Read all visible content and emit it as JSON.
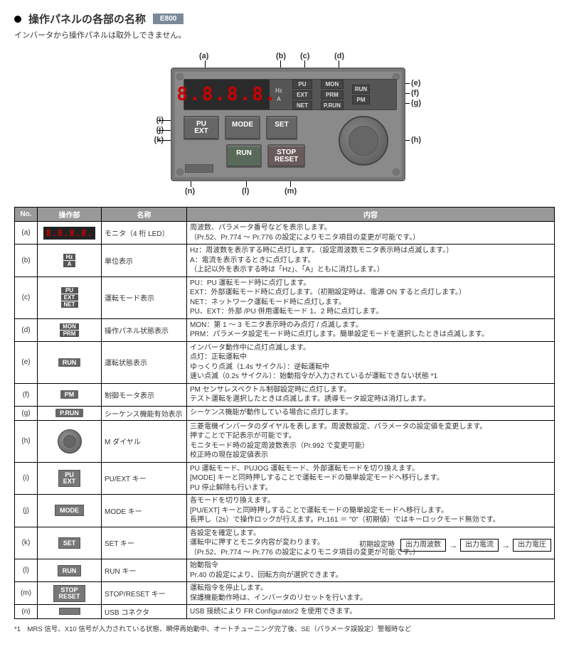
{
  "header": {
    "title": "操作パネルの各部の名称",
    "badge": "E800",
    "subtitle": "インバータから操作パネルは取外しできません。"
  },
  "diagram": {
    "seg_display": "8.8.8.8.",
    "unit_labels": [
      "Hz",
      "A"
    ],
    "mode_leds": [
      "PU",
      "EXT",
      "NET"
    ],
    "status_leds": [
      "MON",
      "PRM",
      "P.RUN"
    ],
    "run_leds": [
      "RUN",
      "PM"
    ],
    "buttons": {
      "puext": "PU\nEXT",
      "mode": "MODE",
      "set": "SET",
      "run": "RUN",
      "stop": "STOP\nRESET"
    },
    "callouts": {
      "a": "(a)",
      "b": "(b)",
      "c": "(c)",
      "d": "(d)",
      "e": "(e)",
      "f": "(f)",
      "g": "(g)",
      "h": "(h)",
      "i": "(i)",
      "j": "(j)",
      "k": "(k)",
      "l": "(l)",
      "m": "(m)",
      "n": "(n)"
    }
  },
  "table": {
    "headers": [
      "No.",
      "操作部",
      "名称",
      "内容"
    ],
    "rows": [
      {
        "no": "(a)",
        "name": "モニタ（4 桁 LED）",
        "desc": "周波数、パラメータ番号などを表示します。\n（Pr.52、Pr.774 ～ Pr.776 の設定によりモニタ項目の変更が可能です。）"
      },
      {
        "no": "(b)",
        "name": "単位表示",
        "desc": "Hz：周波数を表示する時に点灯します。（設定周波数モニタ表示時は点滅します。）\nA：電流を表示するときに点灯します。\n（上記以外を表示する時は「Hz」、「A」ともに消灯します。）"
      },
      {
        "no": "(c)",
        "name": "運転モード表示",
        "desc": "PU：PU 運転モード時に点灯します。\nEXT：外部運転モード時に点灯します。（初期設定時は、電源 ON すると点灯します。）\nNET：ネットワーク運転モード時に点灯します。\nPU、EXT：外部 /PU 併用運転モード 1、2 時に点灯します。"
      },
      {
        "no": "(d)",
        "name": "操作パネル状態表示",
        "desc": "MON：第 1 ～ 3 モニタ表示時のみ点灯 / 点滅します。\nPRM：パラメータ設定モード時に点灯します。簡単設定モードを選択したときは点滅します。"
      },
      {
        "no": "(e)",
        "name": "運転状態表示",
        "desc": "インバータ動作中に点灯点滅します。\n点灯：正転運転中\nゆっくり点滅（1.4s サイクル）：逆転運転中\n速い点滅（0.2s サイクル）：始動指令が入力されているが運転できない状態 *1"
      },
      {
        "no": "(f)",
        "name": "制御モータ表示",
        "desc": "PM センサレスベクトル制御設定時に点灯します。\nテスト運転を選択したときは点滅します。誘導モータ設定時は消灯します。"
      },
      {
        "no": "(g)",
        "name": "シーケンス機能有効表示",
        "desc": "シーケンス機能が動作している場合に点灯します。"
      },
      {
        "no": "(h)",
        "name": "M ダイヤル",
        "desc": "三菱電機インバータのダイヤルを表します。周波数設定、パラメータの設定値を変更します。\n押すことで下記表示が可能です。\nモニタモード時の設定周波数表示（Pr.992 で変更可能）\n校正時の現在設定値表示"
      },
      {
        "no": "(i)",
        "name": "PU/EXT キー",
        "desc": "PU 運転モード、PUJOG 運転モード、外部運転モードを切り換えます。\n[MODE] キーと同時押しすることで運転モードの簡単設定モードへ移行します。\nPU 停止解除も行います。"
      },
      {
        "no": "(j)",
        "name": "MODE キー",
        "desc": "各モードを切り換えます。\n[PU/EXT] キーと同時押しすることで運転モードの簡単設定モードへ移行します。\n長押し（2s）で操作ロックが行えます。Pr.161 ＝ \"0\"（初期値）ではキーロックモード無効です。"
      },
      {
        "no": "(k)",
        "name": "SET キー",
        "desc": "各設定を確定します。\n運転中に押すとモニタ内容が変わります。\n（Pr.52、Pr.774 ～ Pr.776 の設定によりモニタ項目の変更が可能です。）",
        "flow": {
          "label": "初期設定時",
          "steps": [
            "出力周波数",
            "出力電流",
            "出力電圧"
          ]
        }
      },
      {
        "no": "(l)",
        "name": "RUN キー",
        "desc": "始動指令\nPr.40 の設定により、回転方向が選択できます。"
      },
      {
        "no": "(m)",
        "name": "STOP/RESET キー",
        "desc": "運転指令を停止します。\n保護機能動作時は、インバータのリセットを行います。"
      },
      {
        "no": "(n)",
        "name": "USB コネクタ",
        "desc": "USB 接続により FR Configurator2 を使用できます。"
      }
    ]
  },
  "footnote": "*1　MRS 信号、X10 信号が入力されている状態、瞬停再始動中、オートチューニング完了後、SE（パラメータ誤設定）警報時など"
}
